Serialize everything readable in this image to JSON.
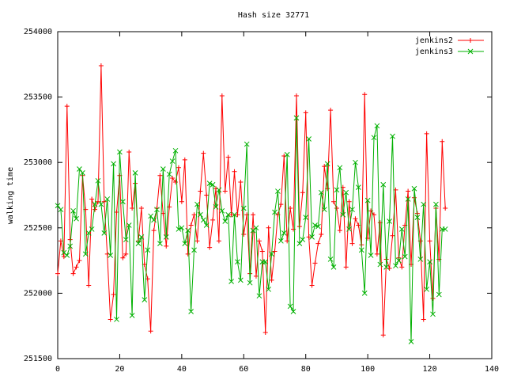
{
  "chart_data": {
    "type": "line",
    "title": "Hash size 32771",
    "xlabel": "",
    "ylabel": "walking time",
    "xlim": [
      0,
      140
    ],
    "ylim": [
      251500,
      254000
    ],
    "xticks": [
      0,
      20,
      40,
      60,
      80,
      100,
      120,
      140
    ],
    "yticks": [
      251500,
      252000,
      252500,
      253000,
      253500,
      254000
    ],
    "grid": false,
    "legend_position": "top-right",
    "x": [
      0,
      1,
      2,
      3,
      4,
      5,
      6,
      7,
      8,
      9,
      10,
      11,
      12,
      13,
      14,
      15,
      16,
      17,
      18,
      19,
      20,
      21,
      22,
      23,
      24,
      25,
      26,
      27,
      28,
      29,
      30,
      31,
      32,
      33,
      34,
      35,
      36,
      37,
      38,
      39,
      40,
      41,
      42,
      43,
      44,
      45,
      46,
      47,
      48,
      49,
      50,
      51,
      52,
      53,
      54,
      55,
      56,
      57,
      58,
      59,
      60,
      61,
      62,
      63,
      64,
      65,
      66,
      67,
      68,
      69,
      70,
      71,
      72,
      73,
      74,
      75,
      76,
      77,
      78,
      79,
      80,
      81,
      82,
      83,
      84,
      85,
      86,
      87,
      88,
      89,
      90,
      91,
      92,
      93,
      94,
      95,
      96,
      97,
      98,
      99,
      100,
      101,
      102,
      103,
      104,
      105,
      106,
      107,
      108,
      109,
      110,
      111,
      112,
      113,
      114,
      115,
      116,
      117,
      118,
      119,
      120,
      121,
      122,
      123,
      124,
      125
    ],
    "series": [
      {
        "name": "jenkins2",
        "color": "#ff0000",
        "marker": "plus",
        "values": [
          252150,
          252400,
          252280,
          253430,
          252410,
          252150,
          252200,
          252250,
          252900,
          252640,
          252060,
          252720,
          252640,
          252700,
          253740,
          252700,
          252300,
          251800,
          251990,
          252620,
          252900,
          252270,
          252300,
          253080,
          252650,
          252840,
          252400,
          252650,
          252220,
          252110,
          251710,
          252480,
          252650,
          252900,
          252610,
          252360,
          252660,
          252880,
          252850,
          252960,
          252700,
          253020,
          252300,
          252520,
          252600,
          252400,
          252780,
          253070,
          252750,
          252350,
          252560,
          252800,
          252400,
          253510,
          252780,
          253040,
          252600,
          252930,
          252600,
          252850,
          252450,
          252600,
          252150,
          252600,
          252130,
          252400,
          252320,
          251700,
          252500,
          252100,
          252320,
          252600,
          252680,
          253050,
          252400,
          252650,
          252490,
          253510,
          252510,
          252770,
          253380,
          252430,
          252060,
          252230,
          252380,
          252450,
          252970,
          252800,
          253400,
          252700,
          252650,
          252480,
          252810,
          252200,
          252700,
          252380,
          252570,
          252520,
          252370,
          253520,
          252420,
          252630,
          252600,
          252300,
          252540,
          251680,
          252260,
          252190,
          252440,
          252790,
          252270,
          252200,
          252520,
          252780,
          252220,
          252730,
          252610,
          252400,
          251800,
          253220,
          252400,
          251960,
          252650,
          252260,
          253160,
          252650
        ]
      },
      {
        "name": "jenkins3",
        "color": "#00b000",
        "marker": "cross",
        "values": [
          252670,
          252640,
          252310,
          252290,
          252360,
          252630,
          252570,
          252950,
          252920,
          252300,
          252460,
          252490,
          252680,
          252860,
          252680,
          252460,
          252720,
          252290,
          252990,
          251800,
          253080,
          252700,
          252410,
          252520,
          251830,
          252920,
          252380,
          252430,
          251950,
          252330,
          252590,
          252560,
          252640,
          252380,
          252950,
          252430,
          252910,
          253010,
          253090,
          252490,
          252500,
          252380,
          252480,
          251860,
          252330,
          252680,
          252600,
          252560,
          252520,
          252840,
          252830,
          252660,
          252790,
          252630,
          252550,
          252600,
          252090,
          252600,
          252240,
          252100,
          252650,
          253140,
          252080,
          252480,
          252500,
          251980,
          252240,
          252240,
          252030,
          252300,
          252620,
          252780,
          252400,
          252460,
          253060,
          251900,
          251860,
          253340,
          252380,
          252410,
          252580,
          253180,
          252430,
          252520,
          252510,
          252770,
          252640,
          252990,
          252260,
          252200,
          252790,
          252960,
          252600,
          252770,
          252490,
          252640,
          253000,
          252810,
          252330,
          252000,
          252710,
          252290,
          253190,
          253280,
          252220,
          252830,
          252200,
          252550,
          253200,
          252210,
          252250,
          252490,
          252280,
          252720,
          251630,
          252800,
          252580,
          252260,
          252680,
          252030,
          252240,
          251840,
          252680,
          251990,
          252490,
          252490
        ]
      }
    ]
  }
}
